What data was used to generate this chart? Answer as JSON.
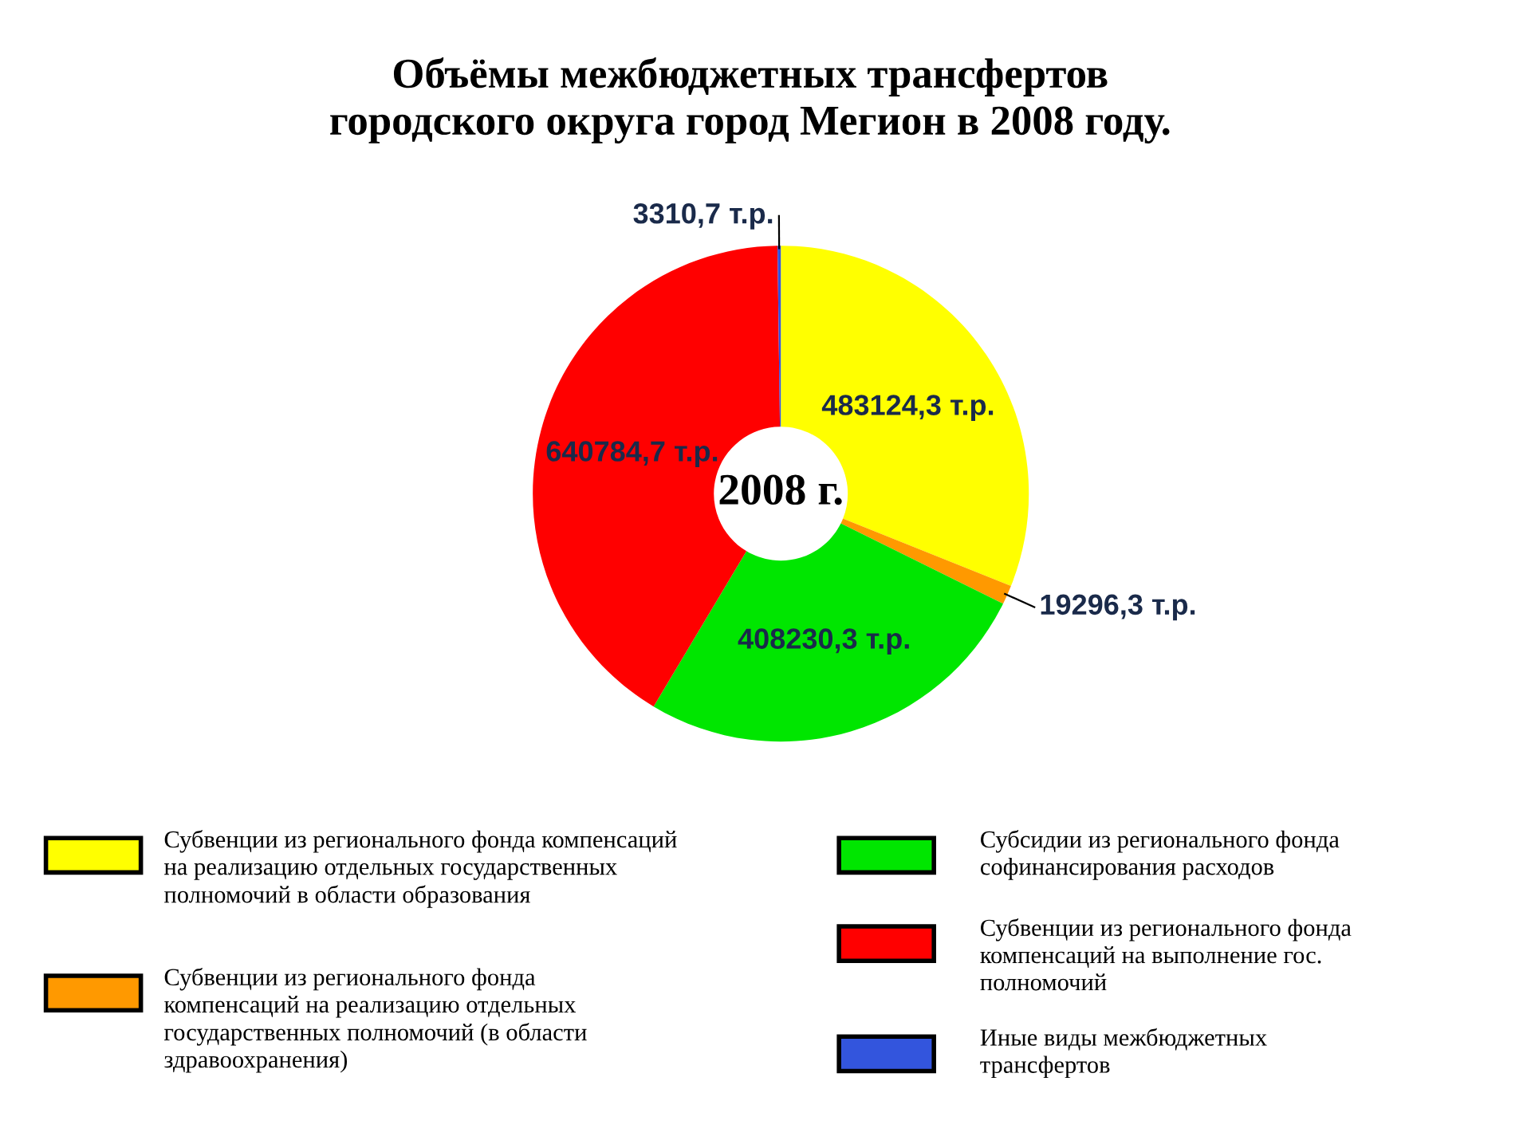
{
  "chart_data": {
    "type": "donut",
    "title": "Объёмы межбюджетных трансфертов\nгородского округа город Мегион в 2008 году.",
    "categories": [
      "Субвенции из регионального фонда компенсаций\nна реализацию отдельных государственных\nполномочий в области образования",
      "Субвенции из регионального фонда\nкомпенсаций на реализацию отдельных\nгосударственных полномочий (в области\nздравоохранения)",
      "Субсидии из регионального фонда\nсофинансирования расходов",
      "Субвенции из регионального фонда\nкомпенсаций на выполнение гос.\nполномочий",
      "Иные виды межбюджетных\nтрансфертов"
    ],
    "values": [
      483124.3,
      19296.3,
      408230.3,
      640784.7,
      3310.7
    ],
    "value_labels": [
      "483124,3 т.р.",
      "19296,3 т.р.",
      "408230,3 т.р.",
      "640784,7 т.р.",
      "3310,7 т.р."
    ],
    "colors": [
      "#ffff00",
      "#ff9900",
      "#00e600",
      "#ff0000",
      "#3355dd"
    ],
    "annotations": [
      "2008 г."
    ],
    "legend": "bottom"
  }
}
